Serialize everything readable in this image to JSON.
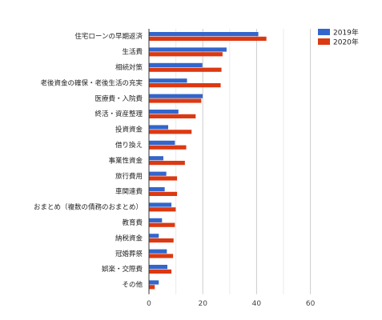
{
  "chart_data": {
    "type": "bar",
    "orientation": "horizontal",
    "categories": [
      "住宅ローンの早期返済",
      "生活費",
      "相続対策",
      "老後資金の確保・老後生活の充実",
      "医療費・入院費",
      "終活・資産整理",
      "投資資金",
      "借り換え",
      "事業性資金",
      "旅行費用",
      "車関連費",
      "おまとめ（複数の債務のおまとめ）",
      "教育費",
      "納税資金",
      "冠婚葬祭",
      "娯楽・交際費",
      "その他"
    ],
    "series": [
      {
        "name": "2019年",
        "color": "#3366cc",
        "values": [
          40.5,
          28.7,
          19.7,
          14.0,
          19.8,
          10.8,
          7.0,
          9.5,
          5.2,
          6.3,
          5.7,
          8.2,
          4.7,
          3.5,
          6.5,
          6.7,
          3.5
        ]
      },
      {
        "name": "2020年",
        "color": "#dc3912",
        "values": [
          43.5,
          27.2,
          26.8,
          26.5,
          19.3,
          17.2,
          15.7,
          13.7,
          13.2,
          10.3,
          10.3,
          9.8,
          9.5,
          9.0,
          8.8,
          8.2,
          2.0
        ]
      }
    ],
    "x_ticks": [
      0,
      20,
      40,
      60
    ],
    "xlim": [
      0,
      62
    ],
    "grid": true,
    "legend_position": "top-right"
  }
}
